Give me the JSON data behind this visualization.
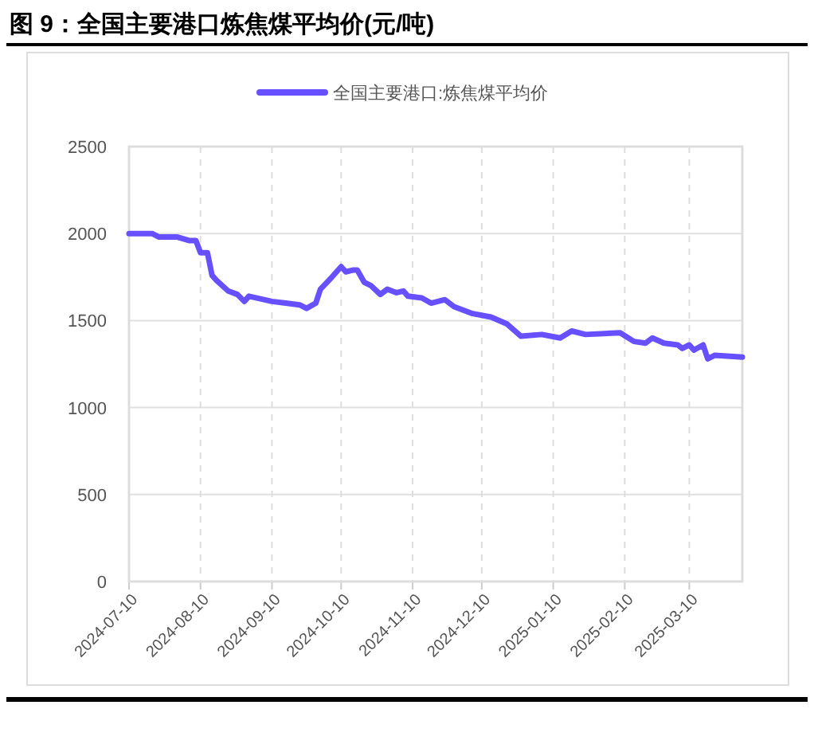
{
  "chart_data": {
    "type": "line",
    "title": "图 9：全国主要港口炼焦煤平均价(元/吨)",
    "x": [
      "2024-07-10",
      "2024-07-20",
      "2024-07-23",
      "2024-07-31",
      "2024-08-05",
      "2024-08-08",
      "2024-08-10",
      "2024-08-13",
      "2024-08-15",
      "2024-08-17",
      "2024-08-22",
      "2024-08-26",
      "2024-08-29",
      "2024-08-31",
      "2024-09-10",
      "2024-09-16",
      "2024-09-22",
      "2024-09-25",
      "2024-09-29",
      "2024-10-01",
      "2024-10-06",
      "2024-10-10",
      "2024-10-12",
      "2024-10-15",
      "2024-10-17",
      "2024-10-20",
      "2024-10-23",
      "2024-10-27",
      "2024-10-30",
      "2024-11-03",
      "2024-11-06",
      "2024-11-08",
      "2024-11-14",
      "2024-11-18",
      "2024-11-24",
      "2024-11-28",
      "2024-12-06",
      "2024-12-14",
      "2024-12-21",
      "2024-12-27",
      "2025-01-05",
      "2025-01-13",
      "2025-01-18",
      "2025-01-24",
      "2025-02-08",
      "2025-02-14",
      "2025-02-19",
      "2025-02-22",
      "2025-02-27",
      "2025-03-05",
      "2025-03-07",
      "2025-03-10",
      "2025-03-12",
      "2025-03-16",
      "2025-03-18",
      "2025-03-21",
      "2025-04-02"
    ],
    "series": [
      {
        "name": "全国主要港口:炼焦煤平均价",
        "color": "#6650ff",
        "values": [
          2000,
          2000,
          1980,
          1980,
          1960,
          1960,
          1890,
          1890,
          1760,
          1730,
          1670,
          1650,
          1610,
          1640,
          1610,
          1600,
          1590,
          1570,
          1600,
          1680,
          1750,
          1810,
          1780,
          1790,
          1790,
          1720,
          1700,
          1650,
          1680,
          1660,
          1670,
          1640,
          1630,
          1600,
          1620,
          1580,
          1540,
          1520,
          1480,
          1410,
          1420,
          1400,
          1440,
          1420,
          1430,
          1380,
          1370,
          1400,
          1370,
          1360,
          1340,
          1360,
          1330,
          1360,
          1280,
          1300,
          1290
        ]
      }
    ],
    "xlim": [
      "2024-07-10",
      "2025-04-02"
    ],
    "xticks": [
      "2024-07-10",
      "2024-08-10",
      "2024-09-10",
      "2024-10-10",
      "2024-11-10",
      "2024-12-10",
      "2025-01-10",
      "2025-02-10",
      "2025-03-10"
    ],
    "ylim": [
      0,
      2500
    ],
    "yticks": [
      0,
      500,
      1000,
      1500,
      2000,
      2500
    ],
    "grid": true,
    "legend": "top",
    "marker": "none",
    "line_style": "solid"
  }
}
